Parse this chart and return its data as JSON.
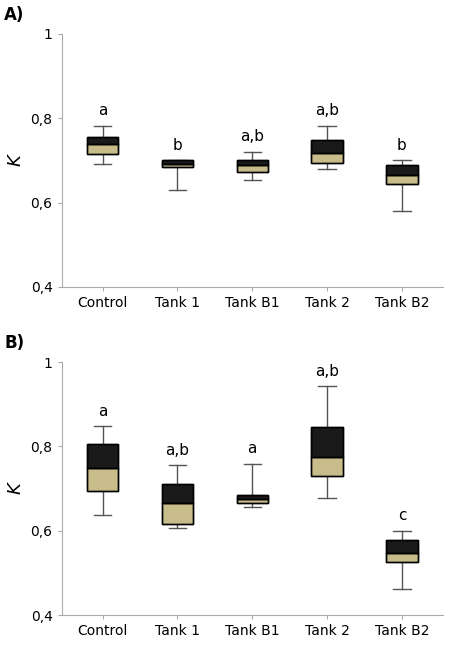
{
  "panel_A": {
    "label": "A)",
    "categories": [
      "Control",
      "Tank 1",
      "Tank B1",
      "Tank 2",
      "Tank B2"
    ],
    "significance": [
      "a",
      "b",
      "a,b",
      "a,b",
      "b"
    ],
    "boxes": [
      {
        "q1": 0.715,
        "median": 0.738,
        "q3": 0.755,
        "whisker_low": 0.692,
        "whisker_high": 0.782
      },
      {
        "q1": 0.685,
        "median": 0.692,
        "q3": 0.7,
        "whisker_low": 0.63,
        "whisker_high": 0.7
      },
      {
        "q1": 0.672,
        "median": 0.69,
        "q3": 0.7,
        "whisker_low": 0.653,
        "whisker_high": 0.72
      },
      {
        "q1": 0.695,
        "median": 0.718,
        "q3": 0.748,
        "whisker_low": 0.68,
        "whisker_high": 0.782
      },
      {
        "q1": 0.645,
        "median": 0.665,
        "q3": 0.69,
        "whisker_low": 0.58,
        "whisker_high": 0.7
      }
    ],
    "ylim": [
      0.4,
      1.0
    ],
    "ytick_vals": [
      0.4,
      0.6,
      0.8,
      1.0
    ],
    "ytick_labels": [
      "0,4",
      "0,6",
      "0,8",
      "1"
    ],
    "ylabel": "K"
  },
  "panel_B": {
    "label": "B)",
    "categories": [
      "Control",
      "Tank 1",
      "Tank B1",
      "Tank 2",
      "Tank B2"
    ],
    "significance": [
      "a",
      "a,b",
      "a",
      "a,b",
      "c"
    ],
    "boxes": [
      {
        "q1": 0.695,
        "median": 0.748,
        "q3": 0.805,
        "whisker_low": 0.638,
        "whisker_high": 0.848
      },
      {
        "q1": 0.615,
        "median": 0.665,
        "q3": 0.71,
        "whisker_low": 0.607,
        "whisker_high": 0.755
      },
      {
        "q1": 0.665,
        "median": 0.675,
        "q3": 0.685,
        "whisker_low": 0.657,
        "whisker_high": 0.758
      },
      {
        "q1": 0.73,
        "median": 0.775,
        "q3": 0.845,
        "whisker_low": 0.678,
        "whisker_high": 0.942
      },
      {
        "q1": 0.525,
        "median": 0.548,
        "q3": 0.578,
        "whisker_low": 0.462,
        "whisker_high": 0.6
      }
    ],
    "ylim": [
      0.4,
      1.0
    ],
    "ytick_vals": [
      0.4,
      0.6,
      0.8,
      1.0
    ],
    "ytick_labels": [
      "0,4",
      "0,6",
      "0,8",
      "1"
    ],
    "ylabel": "K"
  },
  "box_color_lower": "#c8bc8a",
  "box_color_upper": "#1a1a1a",
  "whisker_color": "#555555",
  "cap_color": "#555555",
  "box_width": 0.42,
  "linewidth": 1.0,
  "sig_fontsize": 11,
  "label_fontsize": 12,
  "tick_fontsize": 10,
  "ylabel_fontsize": 13
}
